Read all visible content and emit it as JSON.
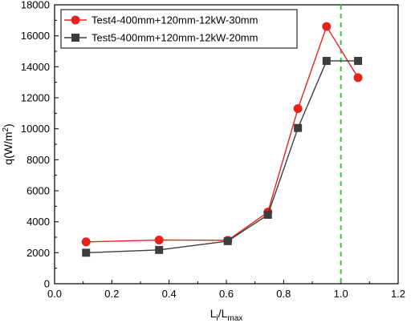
{
  "chart_data": {
    "type": "line",
    "title": "",
    "xlabel": {
      "main": "L",
      "sub1": "i",
      "mid": "/L",
      "sub2": "max"
    },
    "ylabel": {
      "main": "q(W/m",
      "sup": "2",
      "end": ")"
    },
    "xlim": [
      0.0,
      1.2
    ],
    "ylim": [
      0,
      18000
    ],
    "x_ticks": [
      "0.0",
      "0.2",
      "0.4",
      "0.6",
      "0.8",
      "1.0",
      "1.2"
    ],
    "y_ticks": [
      "0",
      "2000",
      "4000",
      "6000",
      "8000",
      "10000",
      "12000",
      "14000",
      "16000",
      "18000"
    ],
    "grid": false,
    "legend_position": "top-left",
    "reference_line": {
      "x": 1.0,
      "style": "dashed",
      "color": "#33cc33"
    },
    "series": [
      {
        "name": "Test4-400mm+120mm-12kW-30mm",
        "color": "#e8211d",
        "marker": "circle",
        "x": [
          0.11,
          0.365,
          0.605,
          0.745,
          0.85,
          0.95,
          1.06
        ],
        "y": [
          2700,
          2820,
          2800,
          4620,
          11300,
          16600,
          13300
        ]
      },
      {
        "name": "Test5-400mm+120mm-12kW-20mm",
        "color": "#3d3d3d",
        "marker": "square",
        "x": [
          0.11,
          0.365,
          0.605,
          0.745,
          0.85,
          0.95,
          1.06
        ],
        "y": [
          2000,
          2180,
          2750,
          4450,
          10050,
          14380,
          14380
        ]
      }
    ]
  }
}
